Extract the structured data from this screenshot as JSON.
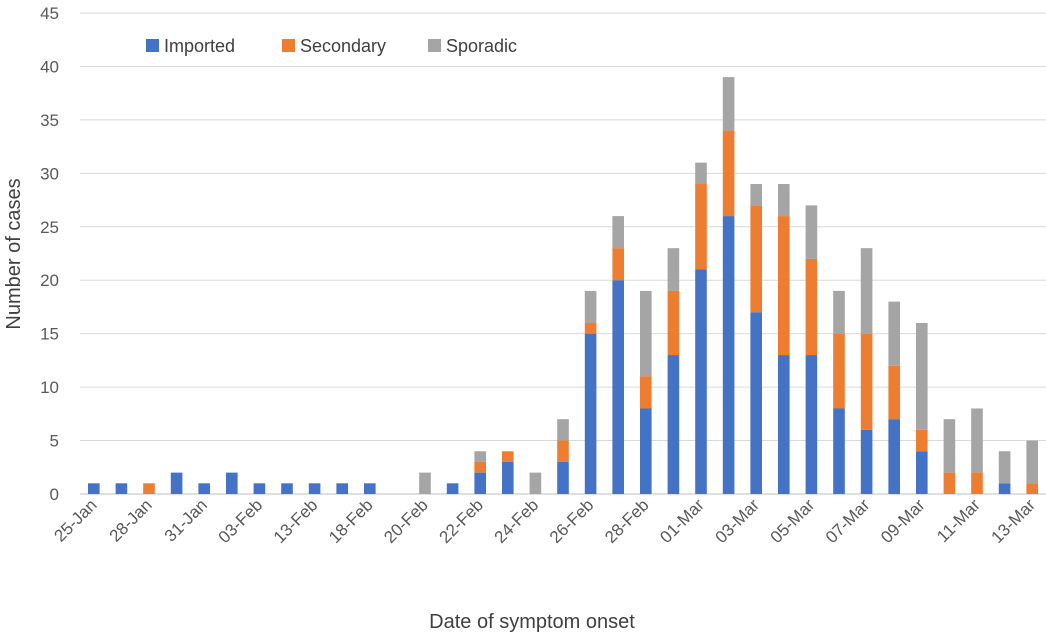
{
  "chart_data": {
    "type": "bar",
    "stacked": true,
    "title": "",
    "xlabel": "Date of symptom onset",
    "ylabel": "Number of cases",
    "ylim": [
      0,
      45
    ],
    "yticks": [
      0,
      5,
      10,
      15,
      20,
      25,
      30,
      35,
      40,
      45
    ],
    "grid": "horizontal",
    "legend_position": "top-left",
    "categories": [
      "25-Jan",
      "26-Jan",
      "28-Jan",
      "29-Jan",
      "31-Jan",
      "01-Feb",
      "03-Feb",
      "10-Feb",
      "13-Feb",
      "14-Feb",
      "18-Feb",
      "19-Feb",
      "20-Feb",
      "21-Feb",
      "22-Feb",
      "23-Feb",
      "24-Feb",
      "25-Feb",
      "26-Feb",
      "27-Feb",
      "28-Feb",
      "29-Feb",
      "01-Mar",
      "02-Mar",
      "03-Mar",
      "04-Mar",
      "05-Mar",
      "06-Mar",
      "07-Mar",
      "08-Mar",
      "09-Mar",
      "10-Mar",
      "11-Mar",
      "12-Mar",
      "13-Mar"
    ],
    "tick_labels": [
      "25-Jan",
      "28-Jan",
      "31-Jan",
      "03-Feb",
      "13-Feb",
      "18-Feb",
      "20-Feb",
      "22-Feb",
      "24-Feb",
      "26-Feb",
      "28-Feb",
      "01-Mar",
      "03-Mar",
      "05-Mar",
      "07-Mar",
      "09-Mar",
      "11-Mar",
      "13-Mar"
    ],
    "series": [
      {
        "name": "Imported",
        "color": "#4472C4",
        "values": [
          1,
          1,
          0,
          2,
          1,
          2,
          1,
          1,
          1,
          1,
          1,
          0,
          0,
          1,
          2,
          3,
          0,
          3,
          15,
          20,
          8,
          13,
          21,
          26,
          17,
          13,
          13,
          8,
          6,
          7,
          4,
          0,
          0,
          1,
          0
        ]
      },
      {
        "name": "Secondary",
        "color": "#ED7D31",
        "values": [
          0,
          0,
          1,
          0,
          0,
          0,
          0,
          0,
          0,
          0,
          0,
          0,
          0,
          0,
          1,
          1,
          0,
          2,
          1,
          3,
          3,
          6,
          8,
          8,
          10,
          13,
          9,
          7,
          9,
          5,
          2,
          2,
          2,
          0,
          1
        ]
      },
      {
        "name": "Sporadic",
        "color": "#A5A5A5",
        "values": [
          0,
          0,
          0,
          0,
          0,
          0,
          0,
          0,
          0,
          0,
          0,
          0,
          2,
          0,
          1,
          0,
          2,
          2,
          3,
          3,
          8,
          4,
          2,
          5,
          2,
          3,
          5,
          4,
          8,
          6,
          10,
          5,
          6,
          3,
          4
        ]
      }
    ]
  }
}
